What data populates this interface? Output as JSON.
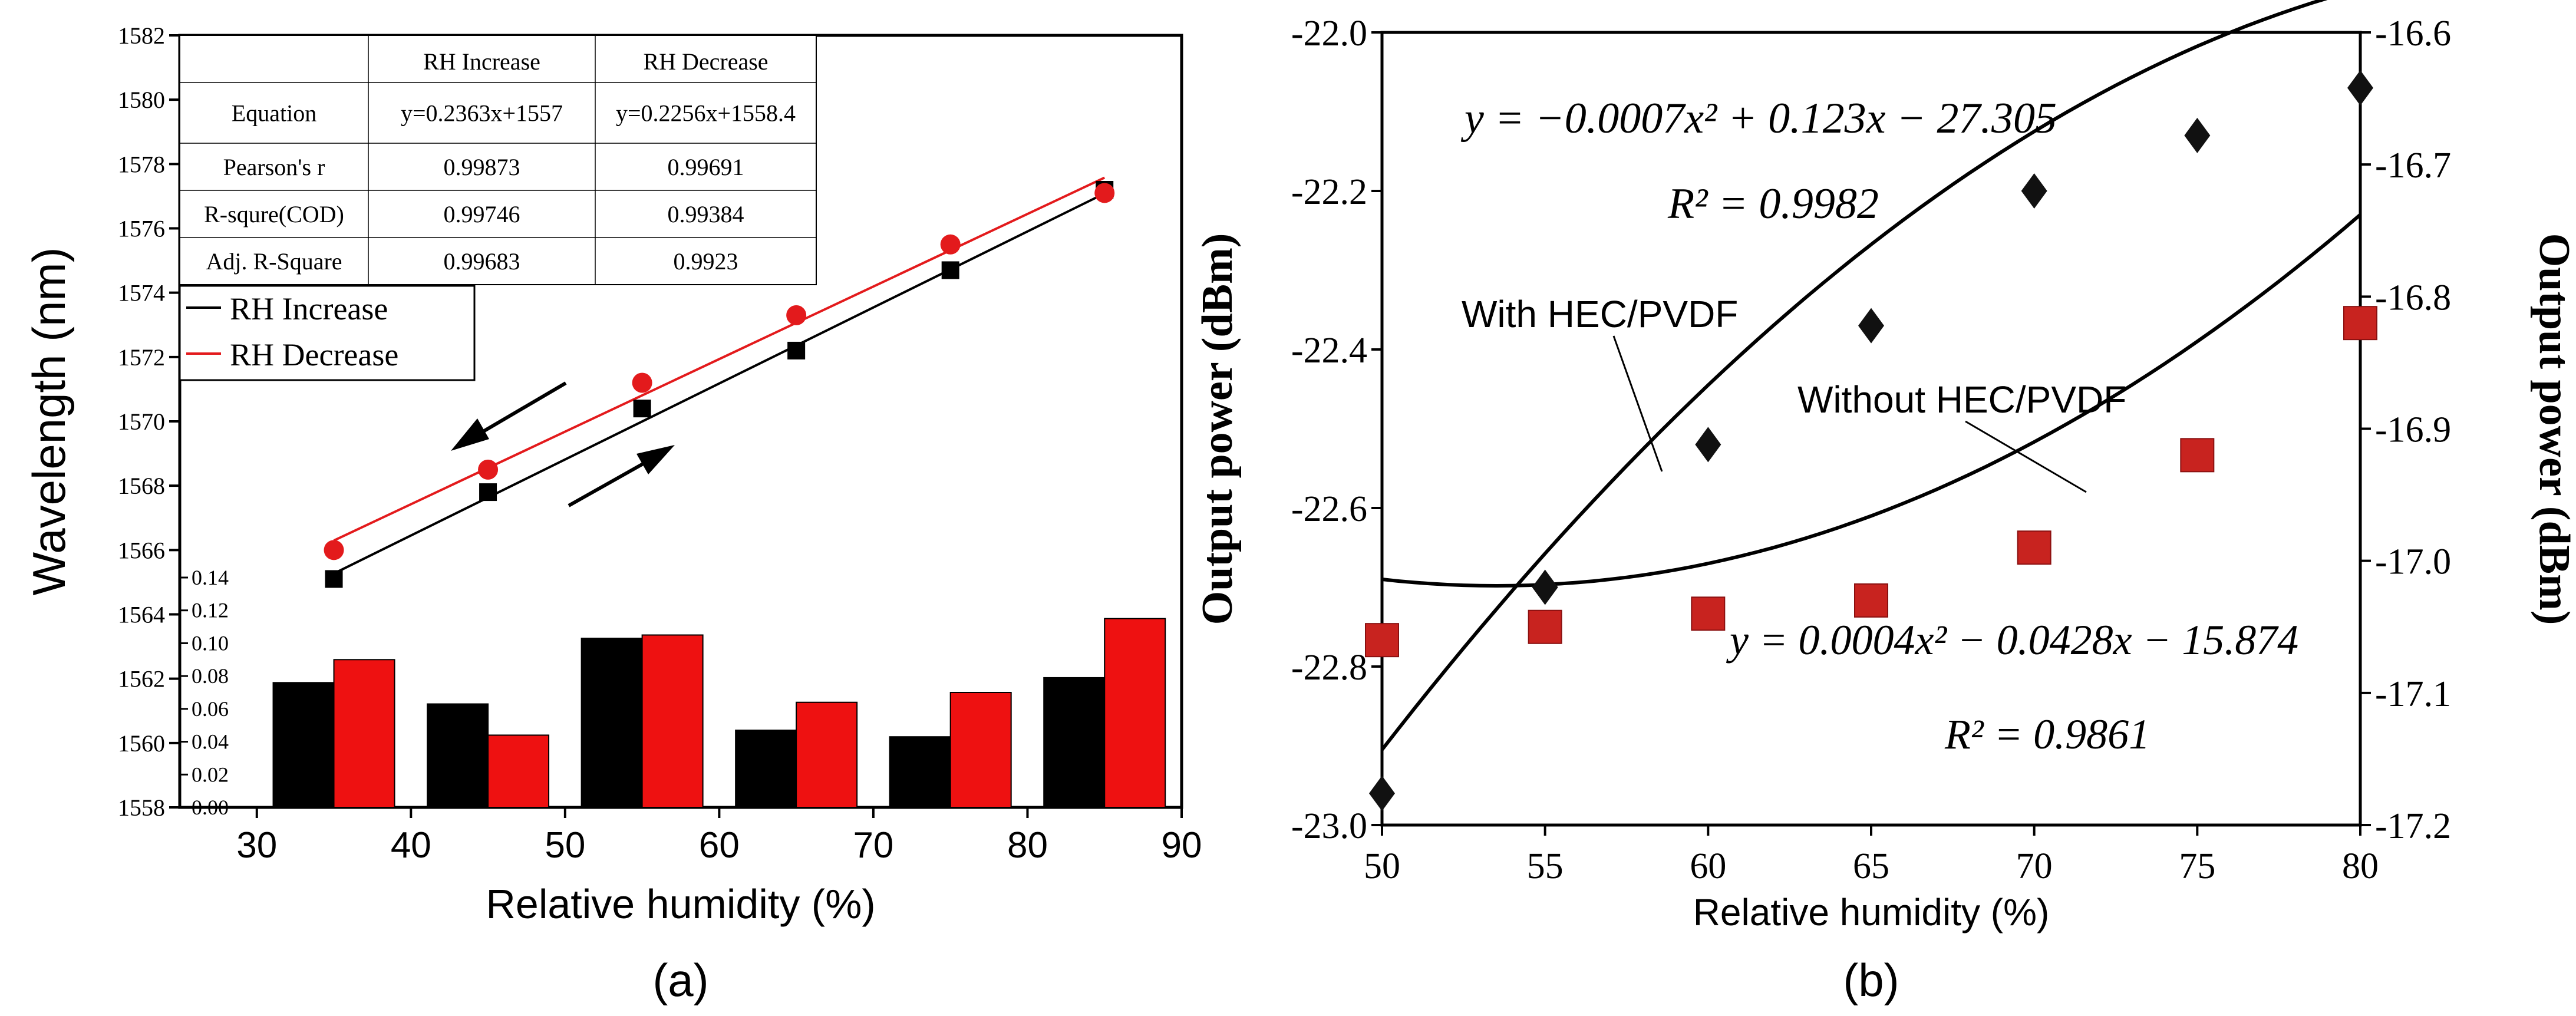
{
  "colors": {
    "black": "#000000",
    "red": "#e31a1c",
    "bar_red": "#ee1111",
    "marker_red": "#c8231f",
    "marker_black": "#111111"
  },
  "chart_data": [
    {
      "id": "a",
      "panel_label": "(a)",
      "type": "scatter",
      "xlabel": "Relative humidity (%)",
      "ylabel": "Wavelength (nm)",
      "xlim": [
        25,
        90
      ],
      "ylim": [
        1558,
        1582
      ],
      "xticks": [
        30,
        40,
        50,
        60,
        70,
        80,
        90
      ],
      "yticks": [
        1558,
        1560,
        1562,
        1564,
        1566,
        1568,
        1570,
        1572,
        1574,
        1576,
        1578,
        1580,
        1582
      ],
      "series": [
        {
          "name": "RH Increase",
          "color": "#000000",
          "marker": "square",
          "x": [
            35,
            45,
            55,
            65,
            75,
            85
          ],
          "y": [
            1565.1,
            1567.8,
            1570.4,
            1572.2,
            1574.7,
            1577.2
          ],
          "fit": {
            "slope": 0.2363,
            "intercept": 1557
          }
        },
        {
          "name": "RH Decrease",
          "color": "#e31a1c",
          "marker": "circle",
          "x": [
            35,
            45,
            55,
            65,
            75,
            85
          ],
          "y": [
            1566.0,
            1568.5,
            1571.2,
            1573.3,
            1575.5,
            1577.1
          ],
          "fit": {
            "slope": 0.2256,
            "intercept": 1558.4
          }
        }
      ],
      "legend": [
        "RH Increase",
        "RH Decrease"
      ],
      "table": {
        "headers": [
          "",
          "RH Increase",
          "RH Decrease"
        ],
        "rows": [
          [
            "Equation",
            "y=0.2363x+1557",
            "y=0.2256x+1558.4"
          ],
          [
            "Pearson's r",
            "0.99873",
            "0.99691"
          ],
          [
            "R-squre(COD)",
            "0.99746",
            "0.99384"
          ],
          [
            "Adj. R-Square",
            "0.99683",
            "0.9923"
          ]
        ]
      },
      "inset_bars": {
        "ylim": [
          0,
          0.14
        ],
        "yticks": [
          "0.00",
          "0.02",
          "0.04",
          "0.06",
          "0.08",
          "0.10",
          "0.12",
          "0.14"
        ],
        "categories": [
          35,
          45,
          55,
          65,
          75,
          85
        ],
        "series": [
          {
            "name": "RH Increase",
            "color": "#000000",
            "values": [
              0.076,
              0.063,
              0.103,
              0.047,
              0.043,
              0.079
            ]
          },
          {
            "name": "RH Decrease",
            "color": "#ee1111",
            "values": [
              0.09,
              0.044,
              0.105,
              0.064,
              0.07,
              0.115
            ]
          }
        ]
      }
    },
    {
      "id": "b",
      "panel_label": "(b)",
      "type": "scatter",
      "xlabel": "Relative humidity (%)",
      "ylabel": "Output power (dBm)",
      "ylabel_right": "Output power (dBm)",
      "xlim": [
        50,
        80
      ],
      "ylim": [
        -23.0,
        -22.0
      ],
      "ylim_right": [
        -17.2,
        -16.6
      ],
      "xticks": [
        50,
        55,
        60,
        65,
        70,
        75,
        80
      ],
      "yticks": [
        "-23.0",
        "-22.8",
        "-22.6",
        "-22.4",
        "-22.2",
        "-22.0"
      ],
      "yticks_right": [
        "-17.2",
        "-17.1",
        "-17.0",
        "-16.9",
        "-16.8",
        "-16.7",
        "-16.6"
      ],
      "series": [
        {
          "name": "With HEC/PVDF",
          "axis": "left",
          "color": "#111111",
          "marker": "diamond",
          "x": [
            50,
            55,
            60,
            65,
            70,
            75,
            80
          ],
          "y": [
            -22.96,
            -22.7,
            -22.52,
            -22.37,
            -22.2,
            -22.13,
            -22.07
          ],
          "fit": {
            "a": -0.0007,
            "b": 0.123,
            "c": -27.305
          }
        },
        {
          "name": "Without HEC/PVDF",
          "axis": "right",
          "color": "#c8231f",
          "marker": "square",
          "x": [
            50,
            55,
            60,
            65,
            70,
            75,
            80
          ],
          "y": [
            -17.06,
            -17.05,
            -17.04,
            -17.03,
            -16.99,
            -16.92,
            -16.82
          ],
          "fit": {
            "a": 0.0004,
            "b": -0.0428,
            "c": -15.874
          }
        }
      ],
      "annotations": {
        "fit1_eq": "y = −0.0007x² + 0.123x − 27.305",
        "fit1_r2": "R² = 0.9982",
        "fit2_eq": "y = 0.0004x² − 0.0428x − 15.874",
        "fit2_r2": "R² = 0.9861",
        "label_with": "With HEC/PVDF",
        "label_without": "Without HEC/PVDF"
      }
    }
  ]
}
